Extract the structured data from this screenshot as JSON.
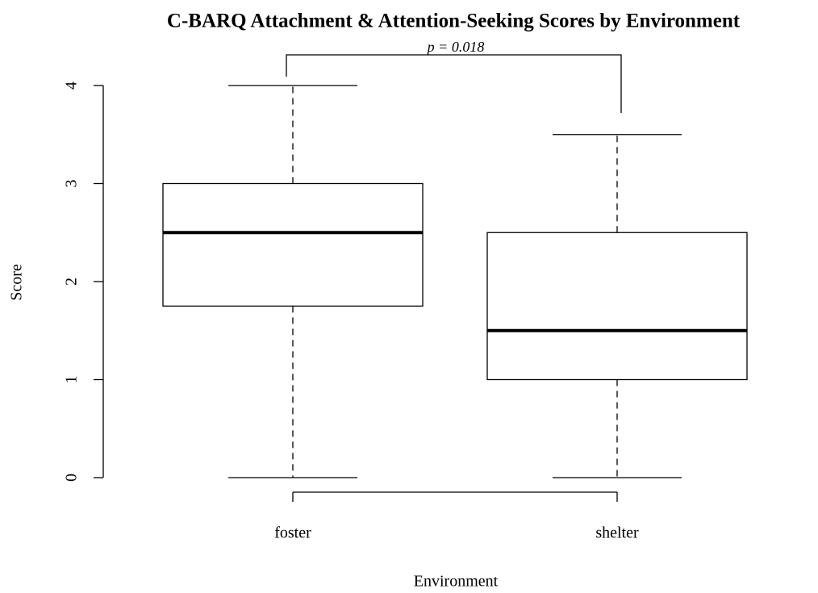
{
  "chart_data": {
    "type": "box",
    "title": "C-BARQ Attachment & Attention-Seeking Scores by Environment",
    "x_label": "Environment",
    "y_label": "Score",
    "categories": [
      "foster",
      "shelter"
    ],
    "boxes": [
      {
        "min": 0,
        "q1": 1.75,
        "median": 2.5,
        "q3": 3,
        "max": 4
      },
      {
        "min": 0,
        "q1": 1,
        "median": 1.5,
        "q3": 2.5,
        "max": 3.5
      }
    ],
    "color": "#000000",
    "fill": "#ffffff",
    "annotation": "p = 0.018",
    "ylim": [
      0,
      4
    ],
    "yticks": [
      0,
      1,
      2,
      3,
      4
    ]
  }
}
